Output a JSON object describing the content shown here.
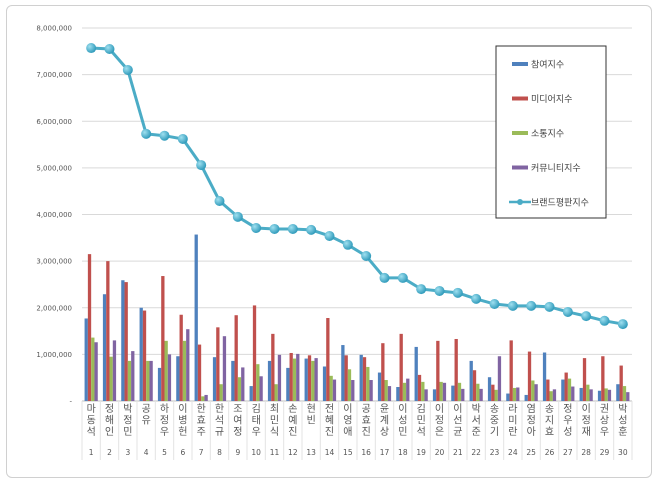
{
  "chart_data": {
    "type": "bar",
    "title": "",
    "xlabel": "",
    "ylabel": "",
    "ylim": [
      0,
      8000000
    ],
    "yticks": [
      "-",
      "1,000,000",
      "2,000,000",
      "3,000,000",
      "4,000,000",
      "5,000,000",
      "6,000,000",
      "7,000,000",
      "8,000,000"
    ],
    "grid": true,
    "legend_position": "top-right",
    "categories": [
      "마동석",
      "정해인",
      "박정민",
      "공유",
      "하정우",
      "이병헌",
      "한효주",
      "한석규",
      "조여정",
      "김태우",
      "최민식",
      "손예진",
      "현빈",
      "전혜진",
      "이영애",
      "공효진",
      "윤계상",
      "이성민",
      "김민석",
      "이정은",
      "이선균",
      "박서준",
      "송중기",
      "라미란",
      "염정아",
      "송지효",
      "정우성",
      "이정재",
      "권상우",
      "박성훈"
    ],
    "ranks": [
      "1",
      "2",
      "3",
      "4",
      "5",
      "6",
      "7",
      "8",
      "9",
      "10",
      "11",
      "12",
      "13",
      "14",
      "15",
      "16",
      "17",
      "18",
      "19",
      "20",
      "21",
      "22",
      "23",
      "24",
      "25",
      "26",
      "27",
      "28",
      "29",
      "30"
    ],
    "series": [
      {
        "name": "참여지수",
        "type": "bar",
        "color": "#4F81BD",
        "values": [
          1770000,
          2290000,
          2590000,
          2000000,
          710000,
          960000,
          3570000,
          940000,
          860000,
          320000,
          860000,
          710000,
          910000,
          740000,
          1200000,
          990000,
          610000,
          300000,
          1160000,
          250000,
          330000,
          860000,
          510000,
          160000,
          130000,
          1040000,
          460000,
          280000,
          220000,
          360000
        ]
      },
      {
        "name": "미디어지수",
        "type": "bar",
        "color": "#C0504D",
        "values": [
          3150000,
          3000000,
          2550000,
          1940000,
          2680000,
          1850000,
          1210000,
          1580000,
          1840000,
          2050000,
          1440000,
          1030000,
          980000,
          1780000,
          980000,
          940000,
          1240000,
          1440000,
          560000,
          1290000,
          1330000,
          660000,
          350000,
          1300000,
          1060000,
          460000,
          610000,
          920000,
          960000,
          760000
        ]
      },
      {
        "name": "소통지수",
        "type": "bar",
        "color": "#9BBB59",
        "values": [
          1360000,
          950000,
          860000,
          860000,
          1290000,
          1290000,
          100000,
          360000,
          510000,
          790000,
          360000,
          910000,
          860000,
          540000,
          680000,
          730000,
          450000,
          390000,
          410000,
          410000,
          390000,
          370000,
          240000,
          280000,
          440000,
          210000,
          480000,
          350000,
          270000,
          320000
        ]
      },
      {
        "name": "커뮤니티지수",
        "type": "bar",
        "color": "#8064A2",
        "values": [
          1260000,
          1300000,
          1070000,
          860000,
          1000000,
          1540000,
          130000,
          1390000,
          720000,
          530000,
          990000,
          1010000,
          920000,
          460000,
          450000,
          450000,
          320000,
          480000,
          250000,
          390000,
          260000,
          260000,
          960000,
          290000,
          360000,
          250000,
          310000,
          250000,
          240000,
          190000
        ]
      },
      {
        "name": "브랜드평판지수",
        "type": "line",
        "color": "#4BACC6",
        "values": [
          7570000,
          7550000,
          7100000,
          5730000,
          5690000,
          5620000,
          5060000,
          4290000,
          3950000,
          3710000,
          3690000,
          3690000,
          3670000,
          3540000,
          3350000,
          3110000,
          2640000,
          2640000,
          2400000,
          2360000,
          2320000,
          2190000,
          2080000,
          2040000,
          2040000,
          2020000,
          1910000,
          1820000,
          1720000,
          1650000
        ]
      }
    ]
  }
}
